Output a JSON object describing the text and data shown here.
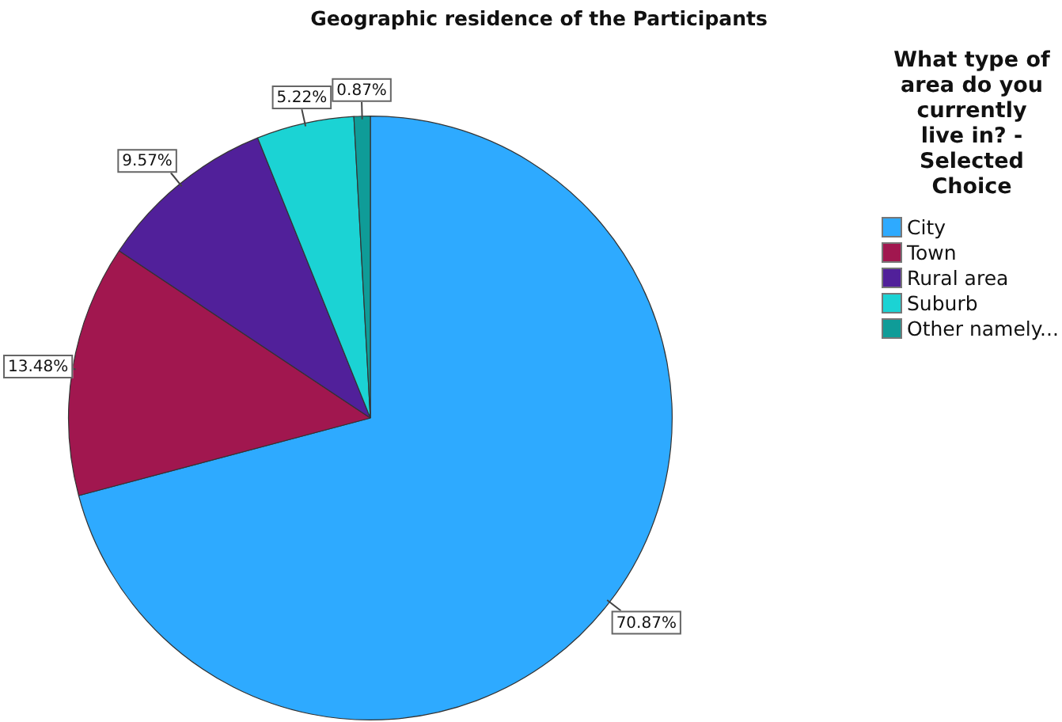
{
  "chart_data": {
    "type": "pie",
    "title": "Geographic residence of the Participants",
    "legend_title": "What type of area do you currently live in? - Selected Choice",
    "legend": "top right",
    "categories": [
      "City",
      "Town",
      "Rural area",
      "Suburb",
      "Other namely..."
    ],
    "values": [
      70.87,
      13.48,
      9.57,
      5.22,
      0.87
    ],
    "colors": [
      "#2eaaff",
      "#a1174f",
      "#51209a",
      "#1bd3d4",
      "#0f9c98"
    ],
    "value_labels": [
      "70.87%",
      "13.48%",
      "9.57%",
      "5.22%",
      "0.87%"
    ]
  }
}
